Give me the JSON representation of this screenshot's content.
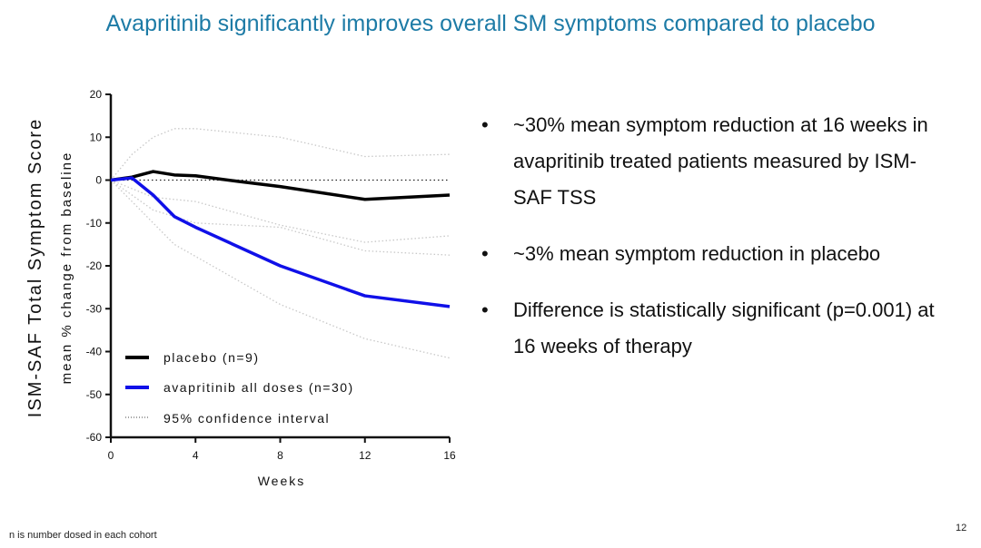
{
  "title": "Avapritinib significantly improves overall SM symptoms compared to placebo",
  "bullets": [
    "~30% mean symptom reduction at 16 weeks in avapritinib treated patients measured by ISM-SAF TSS",
    "~3% mean symptom reduction in placebo",
    "Difference is statistically significant (p=0.001) at 16 weeks of therapy"
  ],
  "bullet_marker": "•",
  "footnote": "n is number dosed in each cohort",
  "page_number": "12",
  "colors": {
    "title": "#1d7ba6",
    "placebo": "#000000",
    "avapritinib": "#1010e8",
    "ci": "#c8c8c8"
  },
  "chart_data": {
    "type": "line",
    "ylabel": "ISM-SAF Total Symptom Score",
    "ylabel2": "mean % change from baseline",
    "xlabel": "Weeks",
    "xlim": [
      0,
      16
    ],
    "ylim": [
      -60,
      20
    ],
    "xticks": [
      0,
      4,
      8,
      12,
      16
    ],
    "yticks": [
      20,
      10,
      0,
      -10,
      -20,
      -30,
      -40,
      -50,
      -60
    ],
    "legend_position": "bottom-left",
    "series": [
      {
        "name": "placebo (n=9)",
        "color": "#000000",
        "x": [
          0,
          1,
          2,
          3,
          4,
          6,
          8,
          12,
          16
        ],
        "y": [
          0,
          0.7,
          2,
          1.2,
          1,
          -0.3,
          -1.5,
          -4.5,
          -3.5
        ]
      },
      {
        "name": "avapritinib all doses (n=30)",
        "color": "#1010e8",
        "x": [
          0,
          1,
          2,
          3,
          4,
          8,
          12,
          16
        ],
        "y": [
          0,
          0.5,
          -3.5,
          -8.5,
          -11,
          -20,
          -27,
          -29.5
        ]
      }
    ],
    "confidence_intervals": {
      "name": "95% confidence interval",
      "bands": [
        {
          "of": "placebo",
          "upper": {
            "x": [
              0,
              1,
              2,
              3,
              4,
              8,
              12,
              16
            ],
            "y": [
              0,
              6,
              10,
              12,
              12,
              10,
              5.5,
              6
            ]
          },
          "lower": {
            "x": [
              0,
              2,
              4,
              8,
              12,
              16
            ],
            "y": [
              0,
              -7,
              -10,
              -11,
              -16.5,
              -17.5
            ]
          }
        },
        {
          "of": "avapritinib",
          "upper": {
            "x": [
              0,
              2,
              4,
              8,
              12,
              16
            ],
            "y": [
              0,
              -4,
              -5,
              -10.5,
              -14.5,
              -13
            ]
          },
          "lower": {
            "x": [
              0,
              2,
              3,
              8,
              12,
              16
            ],
            "y": [
              0,
              -10,
              -15,
              -29,
              -37,
              -41.5
            ]
          }
        }
      ]
    }
  }
}
